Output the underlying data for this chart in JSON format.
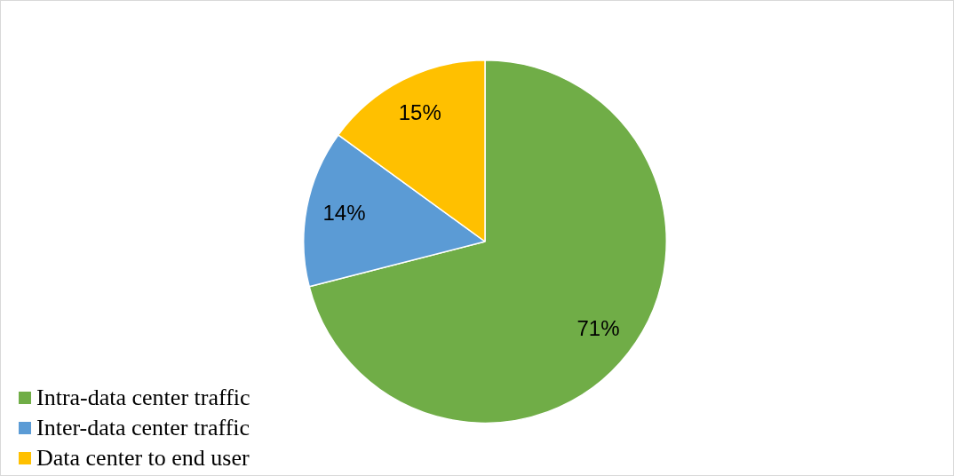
{
  "chart_data": {
    "type": "pie",
    "categories": [
      "Intra-data center traffic",
      "Inter-data center traffic",
      "Data center to end user"
    ],
    "values": [
      71,
      14,
      15
    ],
    "colors": [
      "#70ad47",
      "#5b9bd5",
      "#ffc000"
    ],
    "value_labels": [
      "71%",
      "14%",
      "15%"
    ],
    "legend": "bottom left"
  }
}
